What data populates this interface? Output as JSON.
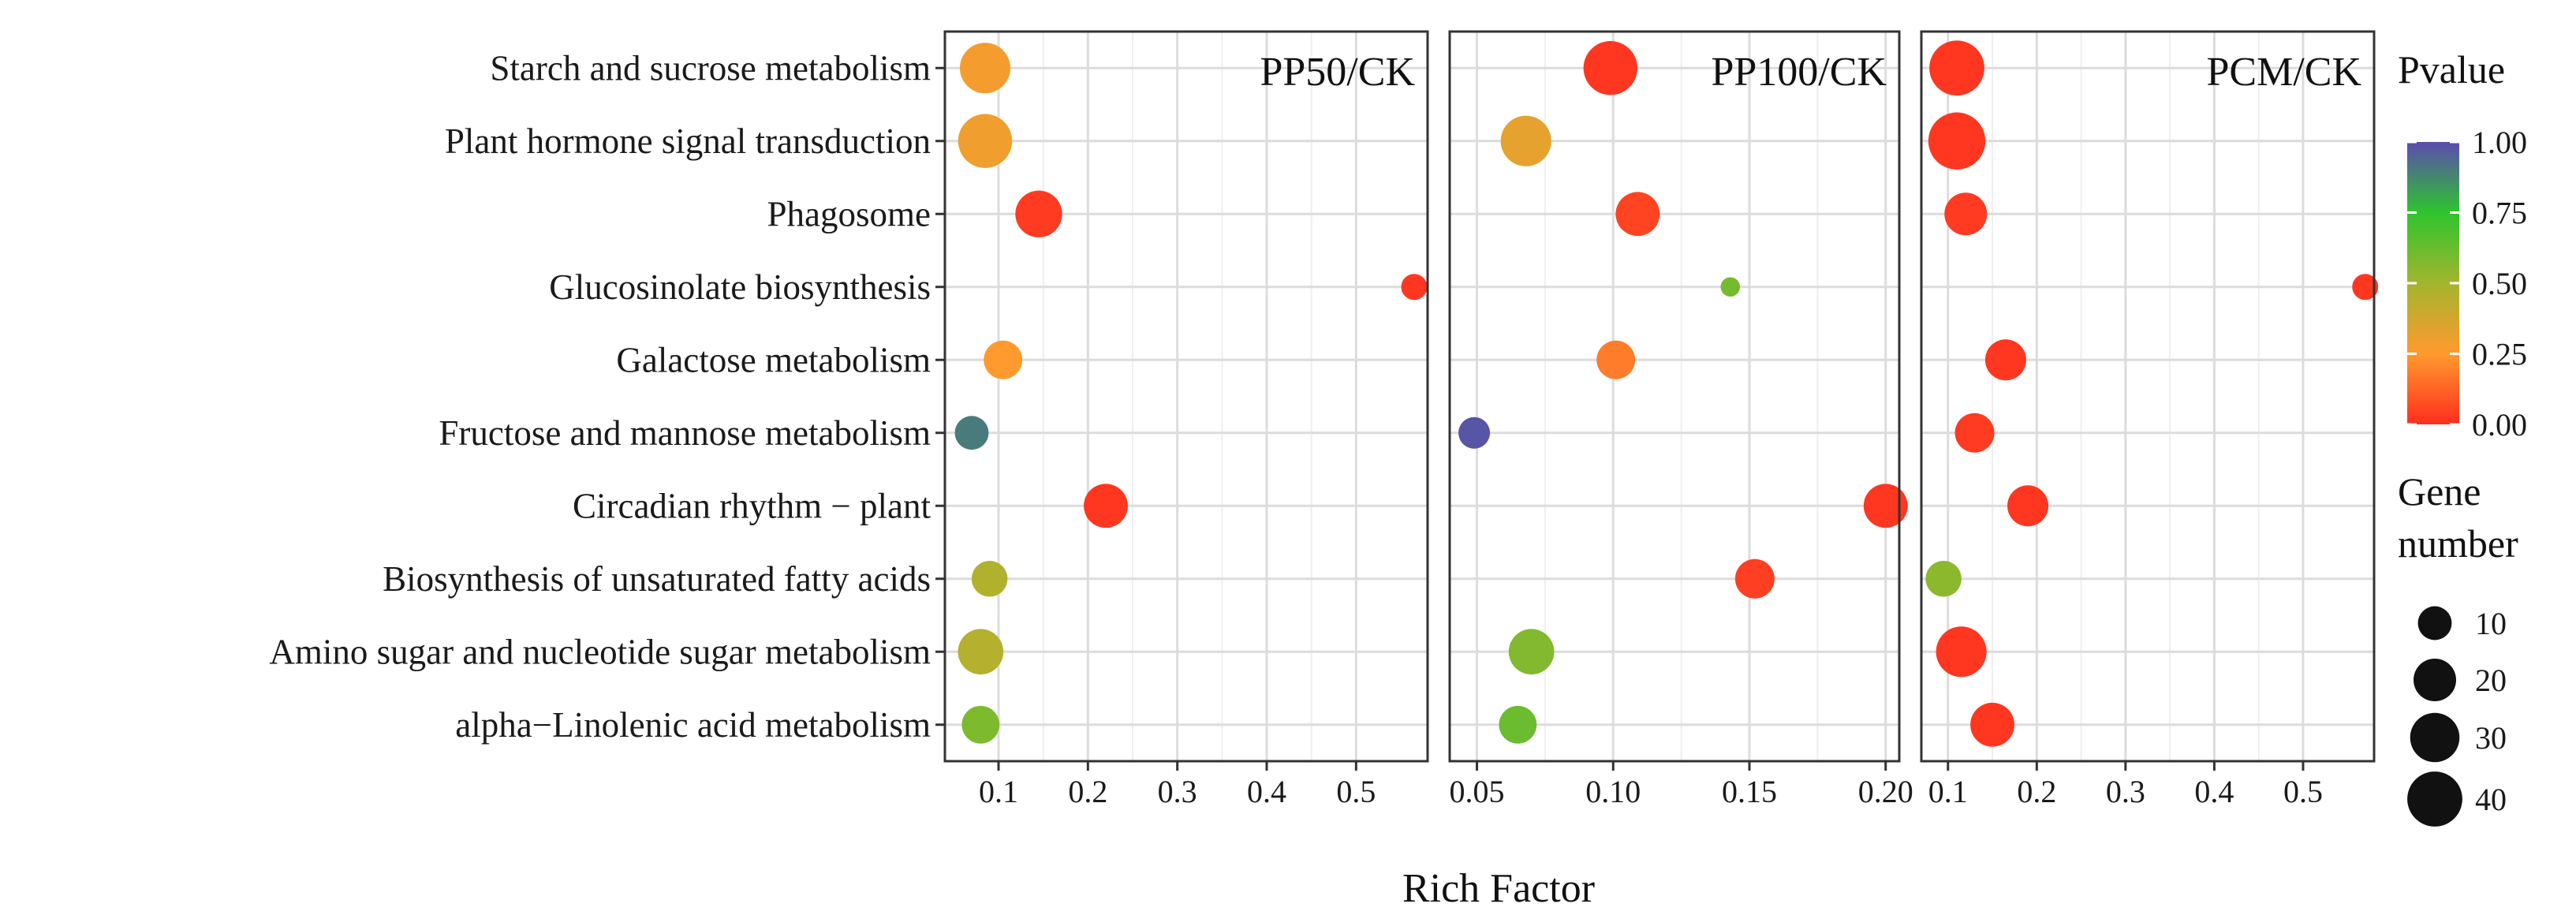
{
  "chart_data": {
    "type": "scatter",
    "xlabel": "Rich Factor",
    "categories": [
      "Starch and sucrose metabolism",
      "Plant hormone signal transduction",
      "Phagosome",
      "Glucosinolate biosynthesis",
      "Galactose metabolism",
      "Fructose and mannose metabolism",
      "Circadian rhythm − plant",
      "Biosynthesis of unsaturated fatty acids",
      "Amino sugar and nucleotide sugar metabolism",
      "alpha−Linolenic acid metabolism"
    ],
    "panels": [
      {
        "title": "PP50/CK",
        "xlim": [
          0.04,
          0.58
        ],
        "xticks": [
          0.1,
          0.2,
          0.3,
          0.4,
          0.5
        ],
        "xtick_labels": [
          "0.1",
          "0.2",
          "0.3",
          "0.4",
          "0.5"
        ],
        "points": [
          {
            "category": "Starch and sucrose metabolism",
            "rich_factor": 0.085,
            "pvalue": 0.28,
            "gene_number": 32
          },
          {
            "category": "Plant hormone signal transduction",
            "rich_factor": 0.085,
            "pvalue": 0.29,
            "gene_number": 38
          },
          {
            "category": "Phagosome",
            "rich_factor": 0.145,
            "pvalue": 0.03,
            "gene_number": 26
          },
          {
            "category": "Glucosinolate biosynthesis",
            "rich_factor": 0.565,
            "pvalue": 0.02,
            "gene_number": 4
          },
          {
            "category": "Galactose metabolism",
            "rich_factor": 0.105,
            "pvalue": 0.25,
            "gene_number": 15
          },
          {
            "category": "Fructose and mannose metabolism",
            "rich_factor": 0.07,
            "pvalue": 0.9,
            "gene_number": 10
          },
          {
            "category": "Circadian rhythm − plant",
            "rich_factor": 0.22,
            "pvalue": 0.02,
            "gene_number": 22
          },
          {
            "category": "Biosynthesis of unsaturated fatty acids",
            "rich_factor": 0.09,
            "pvalue": 0.46,
            "gene_number": 12
          },
          {
            "category": "Amino sugar and nucleotide sugar metabolism",
            "rich_factor": 0.08,
            "pvalue": 0.45,
            "gene_number": 24
          },
          {
            "category": "alpha−Linolenic acid metabolism",
            "rich_factor": 0.08,
            "pvalue": 0.58,
            "gene_number": 14
          }
        ]
      },
      {
        "title": "PP100/CK",
        "xlim": [
          0.04,
          0.205
        ],
        "xticks": [
          0.05,
          0.1,
          0.15,
          0.2
        ],
        "xtick_labels": [
          "0.05",
          "0.10",
          "0.15",
          "0.20"
        ],
        "points": [
          {
            "category": "Starch and sucrose metabolism",
            "rich_factor": 0.099,
            "pvalue": 0.02,
            "gene_number": 38
          },
          {
            "category": "Plant hormone signal transduction",
            "rich_factor": 0.068,
            "pvalue": 0.32,
            "gene_number": 32
          },
          {
            "category": "Phagosome",
            "rich_factor": 0.109,
            "pvalue": 0.05,
            "gene_number": 22
          },
          {
            "category": "Glucosinolate biosynthesis",
            "rich_factor": 0.143,
            "pvalue": 0.6,
            "gene_number": 1
          },
          {
            "category": "Galactose metabolism",
            "rich_factor": 0.101,
            "pvalue": 0.18,
            "gene_number": 15
          },
          {
            "category": "Fructose and mannose metabolism",
            "rich_factor": 0.049,
            "pvalue": 0.98,
            "gene_number": 8
          },
          {
            "category": "Circadian rhythm − plant",
            "rich_factor": 0.2,
            "pvalue": 0.02,
            "gene_number": 22
          },
          {
            "category": "Biosynthesis of unsaturated fatty acids",
            "rich_factor": 0.152,
            "pvalue": 0.04,
            "gene_number": 16
          },
          {
            "category": "Amino sugar and nucleotide sugar metabolism",
            "rich_factor": 0.07,
            "pvalue": 0.57,
            "gene_number": 24
          },
          {
            "category": "alpha−Linolenic acid metabolism",
            "rich_factor": 0.065,
            "pvalue": 0.62,
            "gene_number": 14
          }
        ]
      },
      {
        "title": "PCM/CK",
        "xlim": [
          0.07,
          0.58
        ],
        "xticks": [
          0.1,
          0.2,
          0.3,
          0.4,
          0.5
        ],
        "xtick_labels": [
          "0.1",
          "0.2",
          "0.3",
          "0.4",
          "0.5"
        ],
        "points": [
          {
            "category": "Starch and sucrose metabolism",
            "rich_factor": 0.11,
            "pvalue": 0.02,
            "gene_number": 40
          },
          {
            "category": "Plant hormone signal transduction",
            "rich_factor": 0.11,
            "pvalue": 0.02,
            "gene_number": 44
          },
          {
            "category": "Phagosome",
            "rich_factor": 0.12,
            "pvalue": 0.03,
            "gene_number": 20
          },
          {
            "category": "Glucosinolate biosynthesis",
            "rich_factor": 0.57,
            "pvalue": 0.02,
            "gene_number": 4
          },
          {
            "category": "Galactose metabolism",
            "rich_factor": 0.165,
            "pvalue": 0.02,
            "gene_number": 18
          },
          {
            "category": "Fructose and mannose metabolism",
            "rich_factor": 0.13,
            "pvalue": 0.03,
            "gene_number": 16
          },
          {
            "category": "Circadian rhythm − plant",
            "rich_factor": 0.19,
            "pvalue": 0.02,
            "gene_number": 18
          },
          {
            "category": "Biosynthesis of unsaturated fatty acids",
            "rich_factor": 0.095,
            "pvalue": 0.55,
            "gene_number": 12
          },
          {
            "category": "Amino sugar and nucleotide sugar metabolism",
            "rich_factor": 0.115,
            "pvalue": 0.02,
            "gene_number": 32
          },
          {
            "category": "alpha−Linolenic acid metabolism",
            "rich_factor": 0.15,
            "pvalue": 0.02,
            "gene_number": 22
          }
        ]
      }
    ],
    "color_legend": {
      "title": "Pvalue",
      "range": [
        0,
        1
      ],
      "ticks": [
        1.0,
        0.75,
        0.5,
        0.25,
        0.0
      ],
      "tick_labels": [
        "1.00",
        "0.75",
        "0.50",
        "0.25",
        "0.00"
      ],
      "colors": [
        "#ff2e1f",
        "#ff9a2e",
        "#a3b52e",
        "#2ec42e",
        "#5b4bb0"
      ]
    },
    "size_legend": {
      "title_lines": [
        "Gene",
        "number"
      ],
      "values": [
        10,
        20,
        30,
        40
      ],
      "labels": [
        "10",
        "20",
        "30",
        "40"
      ]
    },
    "grid": true,
    "legend_position": "right"
  }
}
